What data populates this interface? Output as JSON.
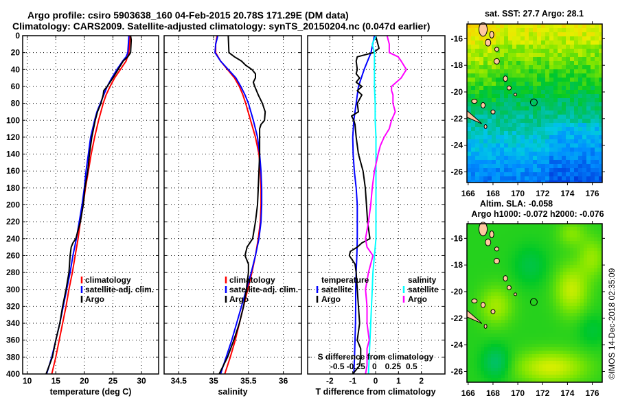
{
  "header": {
    "title_line1": "Argo profile: csiro 5903638_160 04-Feb-2015 20.78S 171.29E (DM data)",
    "title_line2": "Climatology: CARS2009. Satellite-adjusted climatology: synTS_20150204.nc (0.047d earlier)"
  },
  "credit": "©IMOS 14-Dec-2018 02:35:09",
  "colors": {
    "climatology": "#ff0000",
    "satellite_adj": "#0000ff",
    "argo": "#000000",
    "sal_satellite": "#00ffff",
    "sal_argo": "#ff00ff",
    "land": "#ffc8a0"
  },
  "chart_data": [
    {
      "type": "line",
      "id": "temperature",
      "xlabel": "temperature (deg C)",
      "ylabel": "",
      "xlim": [
        9.2,
        33.0
      ],
      "ylim": [
        400,
        0
      ],
      "xticks": [
        10,
        15,
        20,
        25,
        30
      ],
      "yticks": [
        0,
        20,
        40,
        60,
        80,
        100,
        120,
        140,
        160,
        180,
        200,
        220,
        240,
        260,
        280,
        300,
        320,
        340,
        360,
        380,
        400
      ],
      "grid": true,
      "legend": {
        "position": "center-right",
        "entries": [
          "climatology",
          "satellite-adj. clim.",
          "Argo"
        ]
      },
      "series": [
        {
          "name": "climatology",
          "color": "#ff0000",
          "depth": [
            0,
            20,
            30,
            40,
            50,
            60,
            70,
            80,
            100,
            120,
            140,
            160,
            180,
            200,
            220,
            240,
            260,
            280,
            300,
            320,
            340,
            360,
            380,
            400
          ],
          "values": [
            28.0,
            27.8,
            27.3,
            26.3,
            25.3,
            24.5,
            23.8,
            23.3,
            22.5,
            21.8,
            21.2,
            20.7,
            20.2,
            19.8,
            19.3,
            18.9,
            18.4,
            17.9,
            17.3,
            16.8,
            16.2,
            15.6,
            15.0,
            14.3
          ]
        },
        {
          "name": "satellite-adj. clim.",
          "color": "#0000ff",
          "depth": [
            0,
            20,
            25,
            30,
            40,
            50,
            60,
            70,
            80,
            90,
            100,
            120,
            140,
            160,
            180,
            200,
            220,
            240,
            260,
            280,
            300,
            320,
            340,
            360,
            380,
            400
          ],
          "values": [
            27.8,
            27.6,
            27.3,
            26.7,
            25.7,
            24.8,
            24.0,
            23.4,
            22.8,
            22.2,
            21.8,
            21.1,
            20.7,
            20.3,
            20.0,
            19.6,
            19.1,
            18.6,
            18.0,
            17.5,
            16.9,
            16.3,
            15.7,
            15.0,
            14.3,
            13.4
          ]
        },
        {
          "name": "Argo",
          "color": "#000000",
          "depth": [
            0,
            5,
            20,
            25,
            30,
            40,
            50,
            60,
            65,
            70,
            80,
            90,
            100,
            120,
            140,
            160,
            180,
            200,
            220,
            240,
            245,
            250,
            260,
            280,
            300,
            320,
            340,
            360,
            380,
            400
          ],
          "values": [
            28.1,
            28.2,
            28.1,
            27.6,
            26.8,
            25.9,
            25.0,
            24.0,
            23.4,
            23.3,
            22.9,
            22.3,
            21.9,
            21.3,
            20.9,
            20.6,
            20.1,
            19.8,
            19.3,
            18.5,
            18.0,
            17.7,
            17.5,
            17.3,
            16.8,
            16.2,
            15.7,
            15.0,
            14.4,
            13.3
          ]
        }
      ]
    },
    {
      "type": "line",
      "id": "salinity",
      "xlabel": "salinity",
      "ylabel": "",
      "xlim": [
        34.29,
        36.26
      ],
      "ylim": [
        400,
        0
      ],
      "xticks": [
        34.5,
        35,
        35.5,
        36
      ],
      "grid": true,
      "legend": {
        "position": "center-right",
        "entries": [
          "climatology",
          "satellite-adj. clim.",
          "Argo"
        ]
      },
      "series": [
        {
          "name": "climatology",
          "color": "#ff0000",
          "depth": [
            0,
            10,
            20,
            30,
            40,
            50,
            60,
            70,
            80,
            100,
            120,
            140,
            160,
            180,
            200,
            220,
            240,
            260,
            280,
            300,
            320,
            340,
            360,
            380,
            400
          ],
          "values": [
            35.05,
            35.03,
            35.03,
            35.1,
            35.2,
            35.3,
            35.37,
            35.42,
            35.46,
            35.53,
            35.6,
            35.65,
            35.67,
            35.68,
            35.68,
            35.67,
            35.64,
            35.6,
            35.55,
            35.49,
            35.43,
            35.37,
            35.31,
            35.24,
            35.16
          ]
        },
        {
          "name": "satellite-adj. clim.",
          "color": "#0000ff",
          "depth": [
            0,
            10,
            20,
            30,
            40,
            50,
            60,
            70,
            80,
            100,
            120,
            140,
            160,
            180,
            200,
            220,
            240,
            260,
            280,
            300,
            320,
            340,
            360,
            380,
            400
          ],
          "values": [
            35.06,
            35.03,
            35.02,
            35.1,
            35.21,
            35.32,
            35.39,
            35.45,
            35.5,
            35.57,
            35.63,
            35.66,
            35.68,
            35.69,
            35.69,
            35.68,
            35.65,
            35.6,
            35.54,
            35.47,
            35.4,
            35.33,
            35.26,
            35.18,
            35.1
          ]
        },
        {
          "name": "Argo",
          "color": "#000000",
          "depth": [
            0,
            20,
            25,
            30,
            35,
            40,
            45,
            50,
            55,
            60,
            70,
            80,
            90,
            100,
            105,
            110,
            120,
            140,
            160,
            180,
            200,
            220,
            240,
            250,
            260,
            270,
            280,
            300,
            320,
            340,
            360,
            380,
            400
          ],
          "values": [
            35.21,
            35.22,
            35.3,
            35.4,
            35.46,
            35.55,
            35.6,
            35.6,
            35.57,
            35.59,
            35.64,
            35.7,
            35.74,
            35.73,
            35.68,
            35.66,
            35.66,
            35.66,
            35.65,
            35.64,
            35.63,
            35.6,
            35.56,
            35.48,
            35.45,
            35.5,
            35.5,
            35.47,
            35.43,
            35.37,
            35.29,
            35.2,
            35.08
          ]
        }
      ]
    },
    {
      "type": "line",
      "id": "difference",
      "xlabel": "T difference from climatology",
      "x2label": "S difference from climatology",
      "xlim": [
        -2.97,
        3.03
      ],
      "ylim": [
        400,
        0
      ],
      "xticks": [
        -2,
        -1,
        0,
        1,
        2
      ],
      "x2lim": [
        -0.9,
        0.95
      ],
      "x2ticks": [
        -0.5,
        -0.25,
        0,
        0.25,
        0.5
      ],
      "x2ticklabels": [
        "-0.5",
        "-0.25",
        "0",
        "0.25",
        "0.5"
      ],
      "grid": true,
      "legend": {
        "position": "center",
        "groups": [
          {
            "title": "temperature",
            "entries": [
              "satellite",
              "Argo"
            ]
          },
          {
            "title": "salinity",
            "entries": [
              "satellite",
              "Argo"
            ]
          }
        ]
      },
      "series": [
        {
          "name": "temperature satellite",
          "axis": "T",
          "color": "#0000ff",
          "depth": [
            0,
            20,
            40,
            60,
            80,
            100,
            120,
            140,
            160,
            180,
            200,
            220,
            240,
            260,
            280,
            300,
            320,
            340,
            360,
            380,
            400
          ],
          "values": [
            -0.05,
            -0.2,
            -0.5,
            -0.75,
            -0.85,
            -0.95,
            -1.0,
            -0.98,
            -0.93,
            -0.85,
            -0.8,
            -0.8,
            -0.8,
            -0.82,
            -0.85,
            -0.87,
            -0.87,
            -0.88,
            -0.9,
            -0.92,
            -0.95
          ]
        },
        {
          "name": "temperature Argo",
          "axis": "T",
          "color": "#000000",
          "depth": [
            0,
            10,
            15,
            20,
            25,
            30,
            40,
            45,
            50,
            55,
            60,
            65,
            70,
            80,
            90,
            95,
            100,
            105,
            120,
            140,
            160,
            180,
            200,
            220,
            240,
            245,
            250,
            255,
            260,
            270,
            280,
            300,
            320,
            340,
            360,
            370,
            380,
            390,
            400
          ],
          "values": [
            0.0,
            0.1,
            0.15,
            -0.1,
            -0.8,
            -0.85,
            -0.8,
            -0.85,
            -0.7,
            -0.85,
            -0.6,
            -0.8,
            -0.6,
            -0.8,
            -0.75,
            -1.05,
            -0.95,
            -0.9,
            -0.85,
            -0.75,
            -0.55,
            -0.45,
            -0.4,
            -0.35,
            -0.25,
            -0.6,
            -0.8,
            -1.1,
            -1.15,
            -0.9,
            -0.85,
            -0.8,
            -0.75,
            -0.7,
            -0.8,
            -0.65,
            -0.65,
            -0.7,
            -1.0
          ]
        },
        {
          "name": "salinity satellite",
          "axis": "S",
          "color": "#00ffff",
          "depth": [
            0,
            10,
            20,
            40,
            60,
            80,
            100,
            120,
            140,
            160,
            180,
            200,
            220,
            240,
            260,
            280,
            300,
            320,
            340,
            360,
            380,
            400
          ],
          "values": [
            0.02,
            -0.03,
            0.0,
            0.0,
            0.0,
            0.01,
            0.01,
            0.02,
            0.02,
            0.02,
            0.02,
            0.02,
            0.02,
            0.02,
            0.0,
            -0.02,
            -0.03,
            -0.04,
            -0.05,
            -0.06,
            -0.07,
            -0.08
          ]
        },
        {
          "name": "salinity Argo",
          "axis": "S",
          "color": "#ff00ff",
          "depth": [
            0,
            10,
            20,
            25,
            30,
            40,
            50,
            60,
            65,
            70,
            80,
            90,
            100,
            110,
            120,
            130,
            140,
            160,
            180,
            200,
            220,
            240,
            250,
            260,
            270,
            280,
            300,
            320,
            340,
            360,
            370,
            380,
            390,
            400
          ],
          "values": [
            0.17,
            0.2,
            0.2,
            0.32,
            0.36,
            0.43,
            0.36,
            0.23,
            0.23,
            0.25,
            0.25,
            0.28,
            0.23,
            0.2,
            0.13,
            0.08,
            0.05,
            0.0,
            -0.03,
            -0.05,
            -0.08,
            -0.12,
            -0.1,
            -0.02,
            -0.05,
            -0.08,
            -0.12,
            -0.1,
            -0.1,
            -0.07,
            -0.1,
            -0.1,
            -0.1,
            -0.12
          ]
        }
      ]
    },
    {
      "type": "heatmap",
      "id": "sst-map",
      "title": "sat. SST: 27.7 Argo: 28.1",
      "xlim": [
        165.9,
        176.8
      ],
      "ylim": [
        -26.8,
        -14.9
      ],
      "xticks": [
        166,
        168,
        170,
        172,
        174,
        176
      ],
      "yticks": [
        -16,
        -18,
        -20,
        -22,
        -24,
        -26
      ],
      "marker": {
        "lon": 171.29,
        "lat": -20.78
      },
      "colormap": "sst",
      "description": "warm yellow/orange in the north-east, green mid, blue in the south-east"
    },
    {
      "type": "heatmap",
      "id": "sla-map",
      "title_line1": "Altim. SLA: -0.058",
      "title_line2": "Argo h1000: -0.072 h2000: -0.076",
      "xlim": [
        165.9,
        176.8
      ],
      "ylim": [
        -26.8,
        -14.9
      ],
      "xticks": [
        166,
        168,
        170,
        172,
        174,
        176
      ],
      "yticks": [
        -16,
        -18,
        -20,
        -22,
        -24,
        -26
      ],
      "marker": {
        "lon": 171.29,
        "lat": -20.78
      },
      "colormap": "sla",
      "description": "smooth green field with yellow/orange bands in the south and east"
    }
  ]
}
